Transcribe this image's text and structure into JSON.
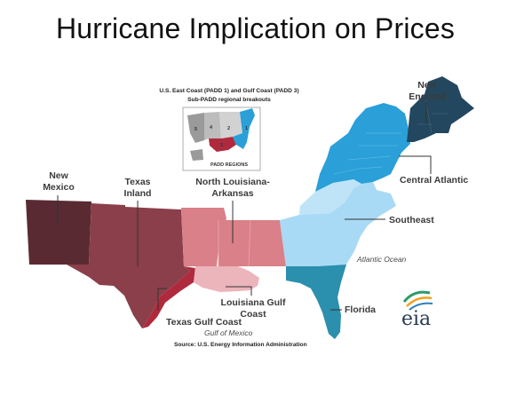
{
  "title": "Hurricane Implication on Prices",
  "inset": {
    "title_line1": "U.S. East Coast (PADD 1) and Gulf Coast (PADD 3)",
    "title_line2": "Sub-PADD regional breakouts",
    "caption": "PADD REGIONS",
    "padd_numbers": [
      "5",
      "4",
      "2",
      "3",
      "1"
    ]
  },
  "regions": {
    "new_mexico": "New Mexico",
    "texas_inland": "Texas Inland",
    "north_louisiana_arkansas": "North Louisiana-Arkansas",
    "louisiana_gulf_coast": "Louisiana Gulf Coast",
    "texas_gulf_coast": "Texas Gulf Coast",
    "new_england": "New England",
    "central_atlantic": "Central Atlantic",
    "southeast": "Southeast",
    "florida": "Florida"
  },
  "water": {
    "atlantic": "Atlantic Ocean",
    "gulf": "Gulf of Mexico"
  },
  "source": "Source: U.S. Energy Information Administration",
  "logo_text": "eia",
  "colors": {
    "new_mexico": "#5a2a32",
    "texas_inland": "#8b3f4a",
    "north_louisiana_arkansas": "#d98088",
    "louisiana_gulf_coast": "#ecb4bb",
    "texas_gulf_coast": "#b02a3e",
    "new_england": "#23475e",
    "central_atlantic": "#2a9fd8",
    "southeast": "#a9daf5",
    "florida": "#2b8fae"
  }
}
